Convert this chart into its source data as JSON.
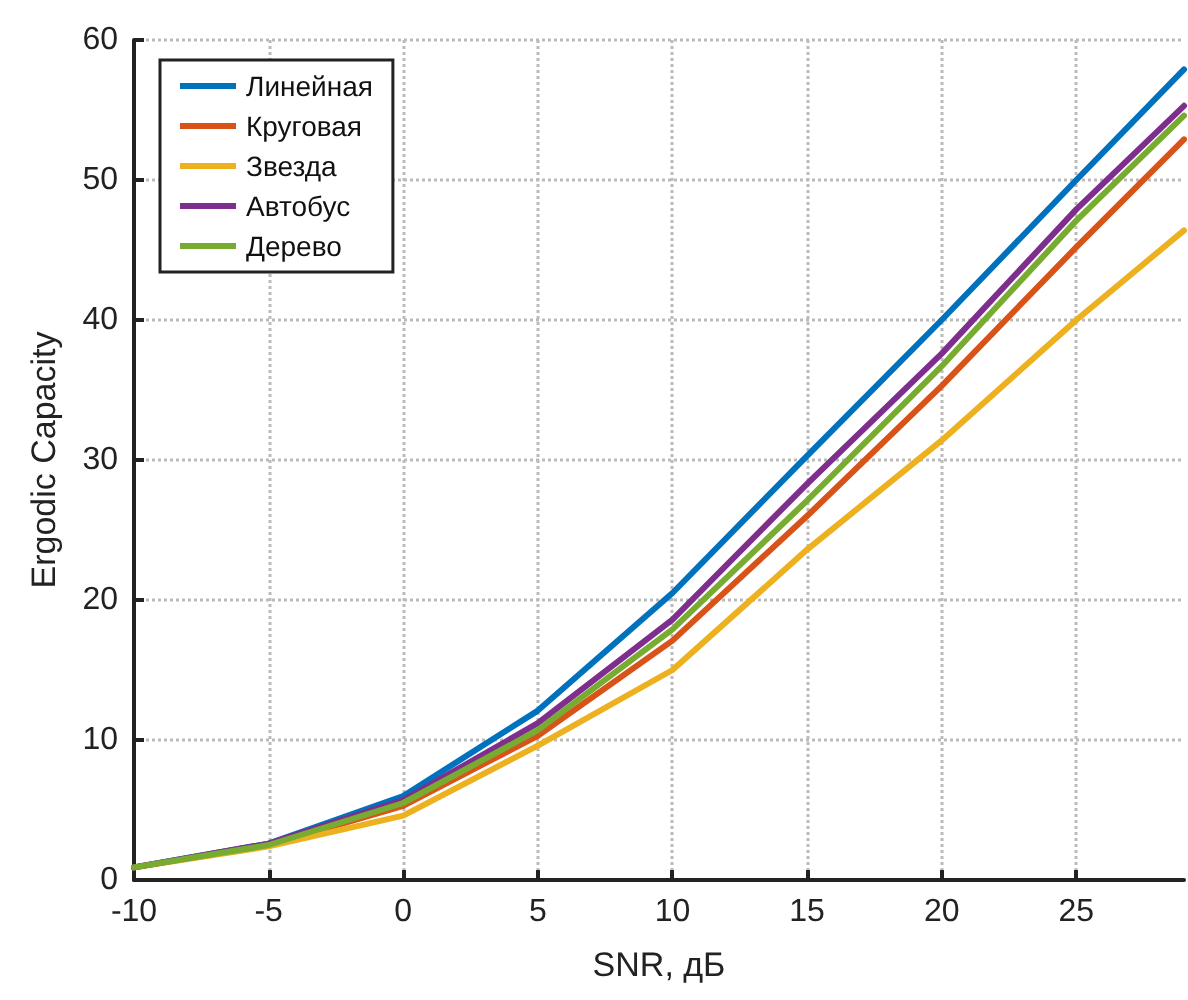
{
  "chart_data": {
    "type": "line",
    "xlabel": "SNR, дБ",
    "ylabel": "Ergodic Capacity",
    "x": [
      -10,
      -5,
      0,
      5,
      10,
      15,
      20,
      25,
      29
    ],
    "series": [
      {
        "name": "Линейная",
        "color": "#0072bd",
        "values": [
          0.9,
          2.6,
          6,
          12.1,
          20.5,
          30.3,
          40,
          50,
          57.9
        ]
      },
      {
        "name": "Круговая",
        "color": "#d95319",
        "values": [
          0.9,
          2.5,
          5.3,
          10.3,
          17.1,
          26,
          35.3,
          45.2,
          52.9
        ]
      },
      {
        "name": "Звезда",
        "color": "#edb120",
        "values": [
          0.9,
          2.4,
          4.6,
          9.6,
          15,
          23.6,
          31.4,
          40,
          46.4
        ]
      },
      {
        "name": "Автобус",
        "color": "#7e2f8e",
        "values": [
          0.9,
          2.6,
          5.7,
          11.2,
          18.6,
          28.3,
          37.6,
          47.9,
          55.3
        ]
      },
      {
        "name": "Дерево",
        "color": "#77ac30",
        "values": [
          0.9,
          2.5,
          5.5,
          10.7,
          17.9,
          27.1,
          36.7,
          47.1,
          54.6
        ]
      }
    ],
    "xlim": [
      -10,
      29
    ],
    "ylim": [
      0,
      60
    ],
    "xticks": [
      -10,
      -5,
      0,
      5,
      10,
      15,
      20,
      25
    ],
    "yticks": [
      0,
      10,
      20,
      30,
      40,
      50,
      60
    ],
    "grid": true,
    "legend": "top left",
    "marker": "none",
    "line_style": "solid"
  }
}
